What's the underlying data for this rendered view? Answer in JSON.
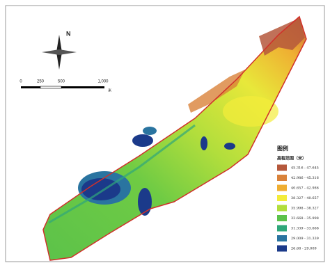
{
  "north": "N",
  "scale_bar": {
    "labels": [
      "0",
      "250",
      "500",
      "1,000"
    ],
    "unit": "米"
  },
  "legend": {
    "title": "图例",
    "subtitle": "高程范围（米）",
    "items": [
      {
        "label": "45.316 - 47.645",
        "color": "#b5583c"
      },
      {
        "label": "42.986 - 45.316",
        "color": "#d9823a"
      },
      {
        "label": "40.657 - 42.986",
        "color": "#efae32"
      },
      {
        "label": "38.327 - 40.657",
        "color": "#f3ec3a"
      },
      {
        "label": "35.998 - 38.327",
        "color": "#b2de3c"
      },
      {
        "label": "33.668 - 35.998",
        "color": "#5cc24a"
      },
      {
        "label": "31.339 - 33.668",
        "color": "#2fa77a"
      },
      {
        "label": "29.009 - 31.339",
        "color": "#2a74a0"
      },
      {
        "label": "26.68 - 29.009",
        "color": "#1b3a8a"
      }
    ]
  }
}
